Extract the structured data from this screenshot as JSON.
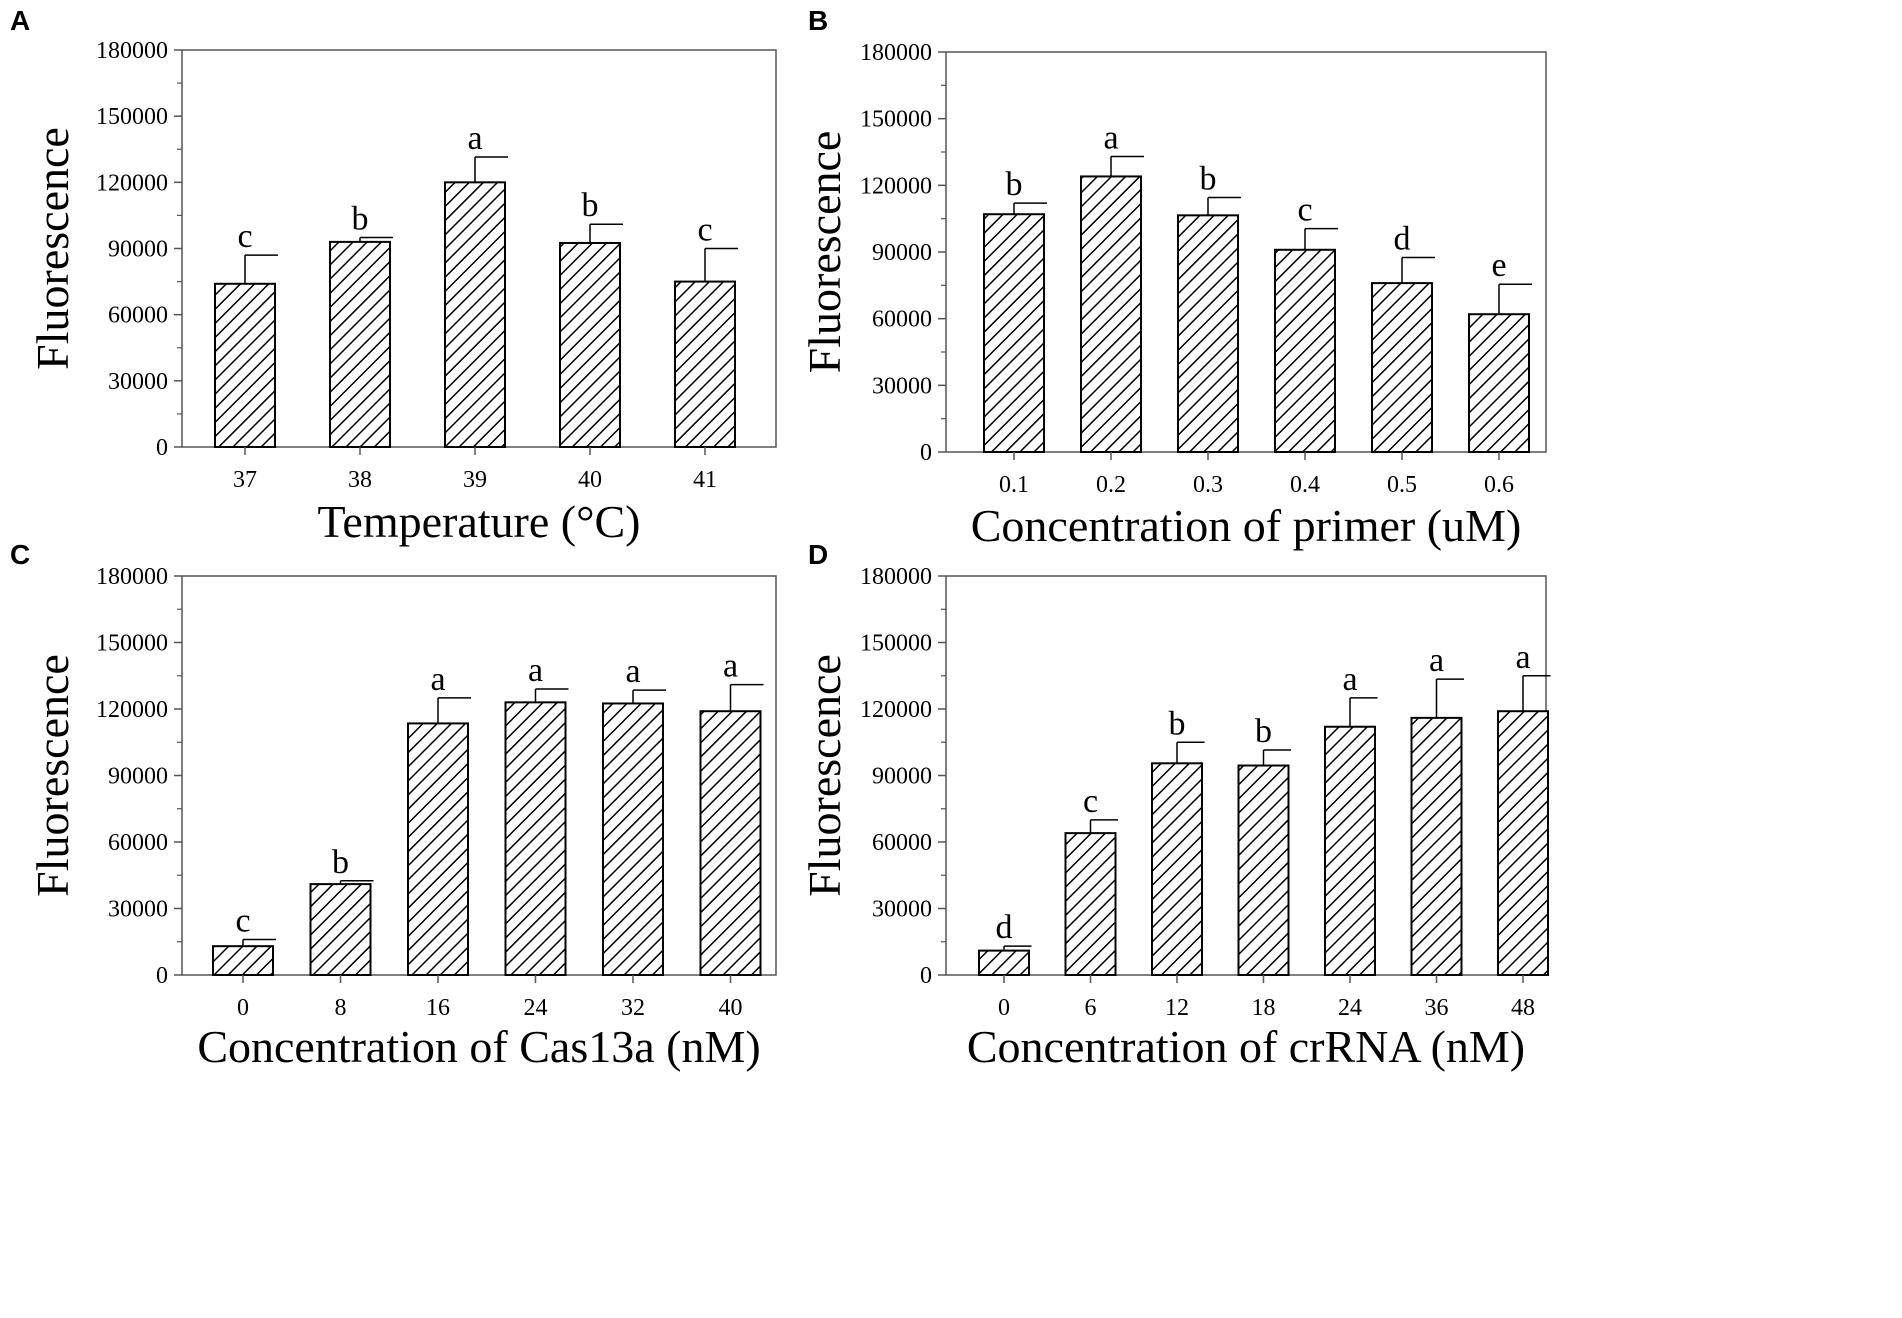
{
  "chart_data": [
    {
      "panel": "A",
      "type": "bar",
      "categories": [
        "37",
        "38",
        "39",
        "40",
        "41"
      ],
      "values": [
        74000,
        93000,
        120000,
        92500,
        75000
      ],
      "errors": [
        13000,
        2000,
        11500,
        8500,
        15000
      ],
      "sig_letters": [
        "c",
        "b",
        "a",
        "b",
        "c"
      ],
      "xlabel": "Temperature (°C)",
      "ylabel": "Fluorescence",
      "ylim": [
        0,
        180000
      ],
      "yticks": [
        "0",
        "30000",
        "60000",
        "90000",
        "120000",
        "150000",
        "180000"
      ]
    },
    {
      "panel": "B",
      "type": "bar",
      "categories": [
        "0.1",
        "0.2",
        "0.3",
        "0.4",
        "0.5",
        "0.6"
      ],
      "values": [
        107000,
        124000,
        106500,
        91000,
        76000,
        62000
      ],
      "errors": [
        5000,
        9000,
        8000,
        9500,
        11500,
        13500
      ],
      "sig_letters": [
        "b",
        "a",
        "b",
        "c",
        "d",
        "e"
      ],
      "xlabel": "Concentration of primer (uM)",
      "ylabel": "Fluorescence",
      "ylim": [
        0,
        180000
      ],
      "yticks": [
        "0",
        "30000",
        "60000",
        "90000",
        "120000",
        "150000",
        "180000"
      ]
    },
    {
      "panel": "C",
      "type": "bar",
      "categories": [
        "0",
        "8",
        "16",
        "24",
        "32",
        "40"
      ],
      "values": [
        13000,
        41000,
        113500,
        123000,
        122500,
        119000
      ],
      "errors": [
        3000,
        1500,
        11500,
        6000,
        6000,
        12000
      ],
      "sig_letters": [
        "c",
        "b",
        "a",
        "a",
        "a",
        "a"
      ],
      "xlabel": "Concentration of Cas13a (nM)",
      "ylabel": "Fluorescence",
      "ylim": [
        0,
        180000
      ],
      "yticks": [
        "0",
        "30000",
        "60000",
        "90000",
        "120000",
        "150000",
        "180000"
      ]
    },
    {
      "panel": "D",
      "type": "bar",
      "categories": [
        "0",
        "6",
        "12",
        "18",
        "24",
        "36",
        "48"
      ],
      "values": [
        11000,
        64000,
        95500,
        94500,
        112000,
        116000,
        119000
      ],
      "errors": [
        2000,
        6000,
        9500,
        7000,
        13000,
        17500,
        16000
      ],
      "sig_letters": [
        "d",
        "c",
        "b",
        "b",
        "a",
        "a",
        "a"
      ],
      "xlabel": "Concentration of crRNA (nM)",
      "ylabel": "Fluorescence",
      "ylim": [
        0,
        180000
      ],
      "yticks": [
        "0",
        "30000",
        "60000",
        "90000",
        "120000",
        "150000",
        "180000"
      ]
    }
  ]
}
